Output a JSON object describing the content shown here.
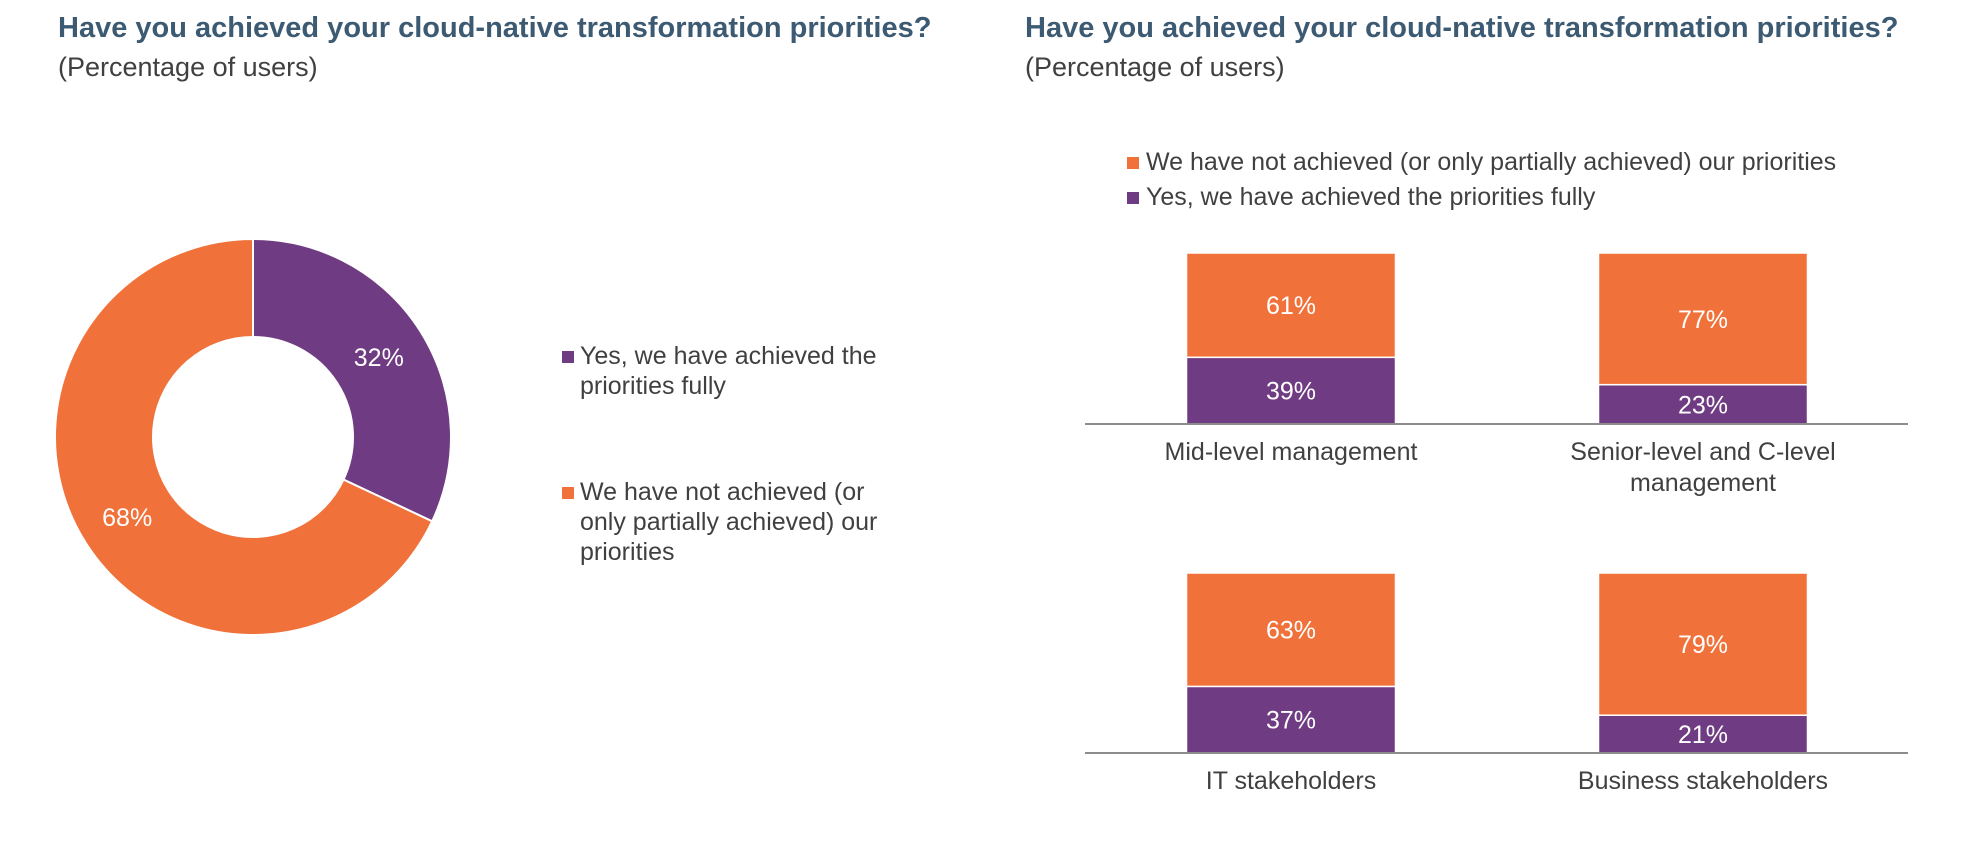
{
  "colors": {
    "yes": "#6F3B82",
    "no": "#F0723A",
    "title": "#3D5A73",
    "axis": "#8C8C8C",
    "text": "#404040"
  },
  "left_panel": {
    "title": "Have you achieved your cloud-native transformation priorities?",
    "subtitle": "(Percentage of users)"
  },
  "right_panel": {
    "title": "Have you achieved your cloud-native transformation priorities?",
    "subtitle": "(Percentage of users)"
  },
  "chart_data": [
    {
      "type": "pie",
      "donut": true,
      "slices": [
        {
          "label": "Yes, we have achieved the priorities fully",
          "value": 32,
          "display": "32%",
          "color_key": "yes"
        },
        {
          "label": "We have not achieved (or only partially achieved) our priorities",
          "value": 68,
          "display": "68%",
          "color_key": "no"
        }
      ],
      "legend_lines": [
        [
          "Yes, we have achieved the",
          "priorities fully"
        ],
        [
          "We have not achieved (or",
          "only partially achieved) our",
          "priorities"
        ]
      ],
      "legend_position": "right"
    },
    {
      "type": "bar",
      "stacked": true,
      "normalized": true,
      "legend": [
        {
          "label": "We have not achieved (or only partially achieved) our priorities",
          "color_key": "no"
        },
        {
          "label": "Yes, we have achieved the priorities fully",
          "color_key": "yes"
        }
      ],
      "legend_position": "top",
      "groups": [
        {
          "categories": [
            {
              "lines": [
                "Mid-level management"
              ],
              "yes": 39,
              "no": 61
            },
            {
              "lines": [
                "Senior-level and C-level",
                "management"
              ],
              "yes": 23,
              "no": 77
            }
          ]
        },
        {
          "categories": [
            {
              "lines": [
                "IT stakeholders"
              ],
              "yes": 37,
              "no": 63
            },
            {
              "lines": [
                "Business stakeholders"
              ],
              "yes": 21,
              "no": 79
            }
          ]
        }
      ],
      "series": [
        {
          "name": "Yes, we have achieved the priorities fully",
          "key": "yes"
        },
        {
          "name": "We have not achieved (or only partially achieved) our priorities",
          "key": "no"
        }
      ],
      "ylim": [
        0,
        100
      ]
    }
  ]
}
